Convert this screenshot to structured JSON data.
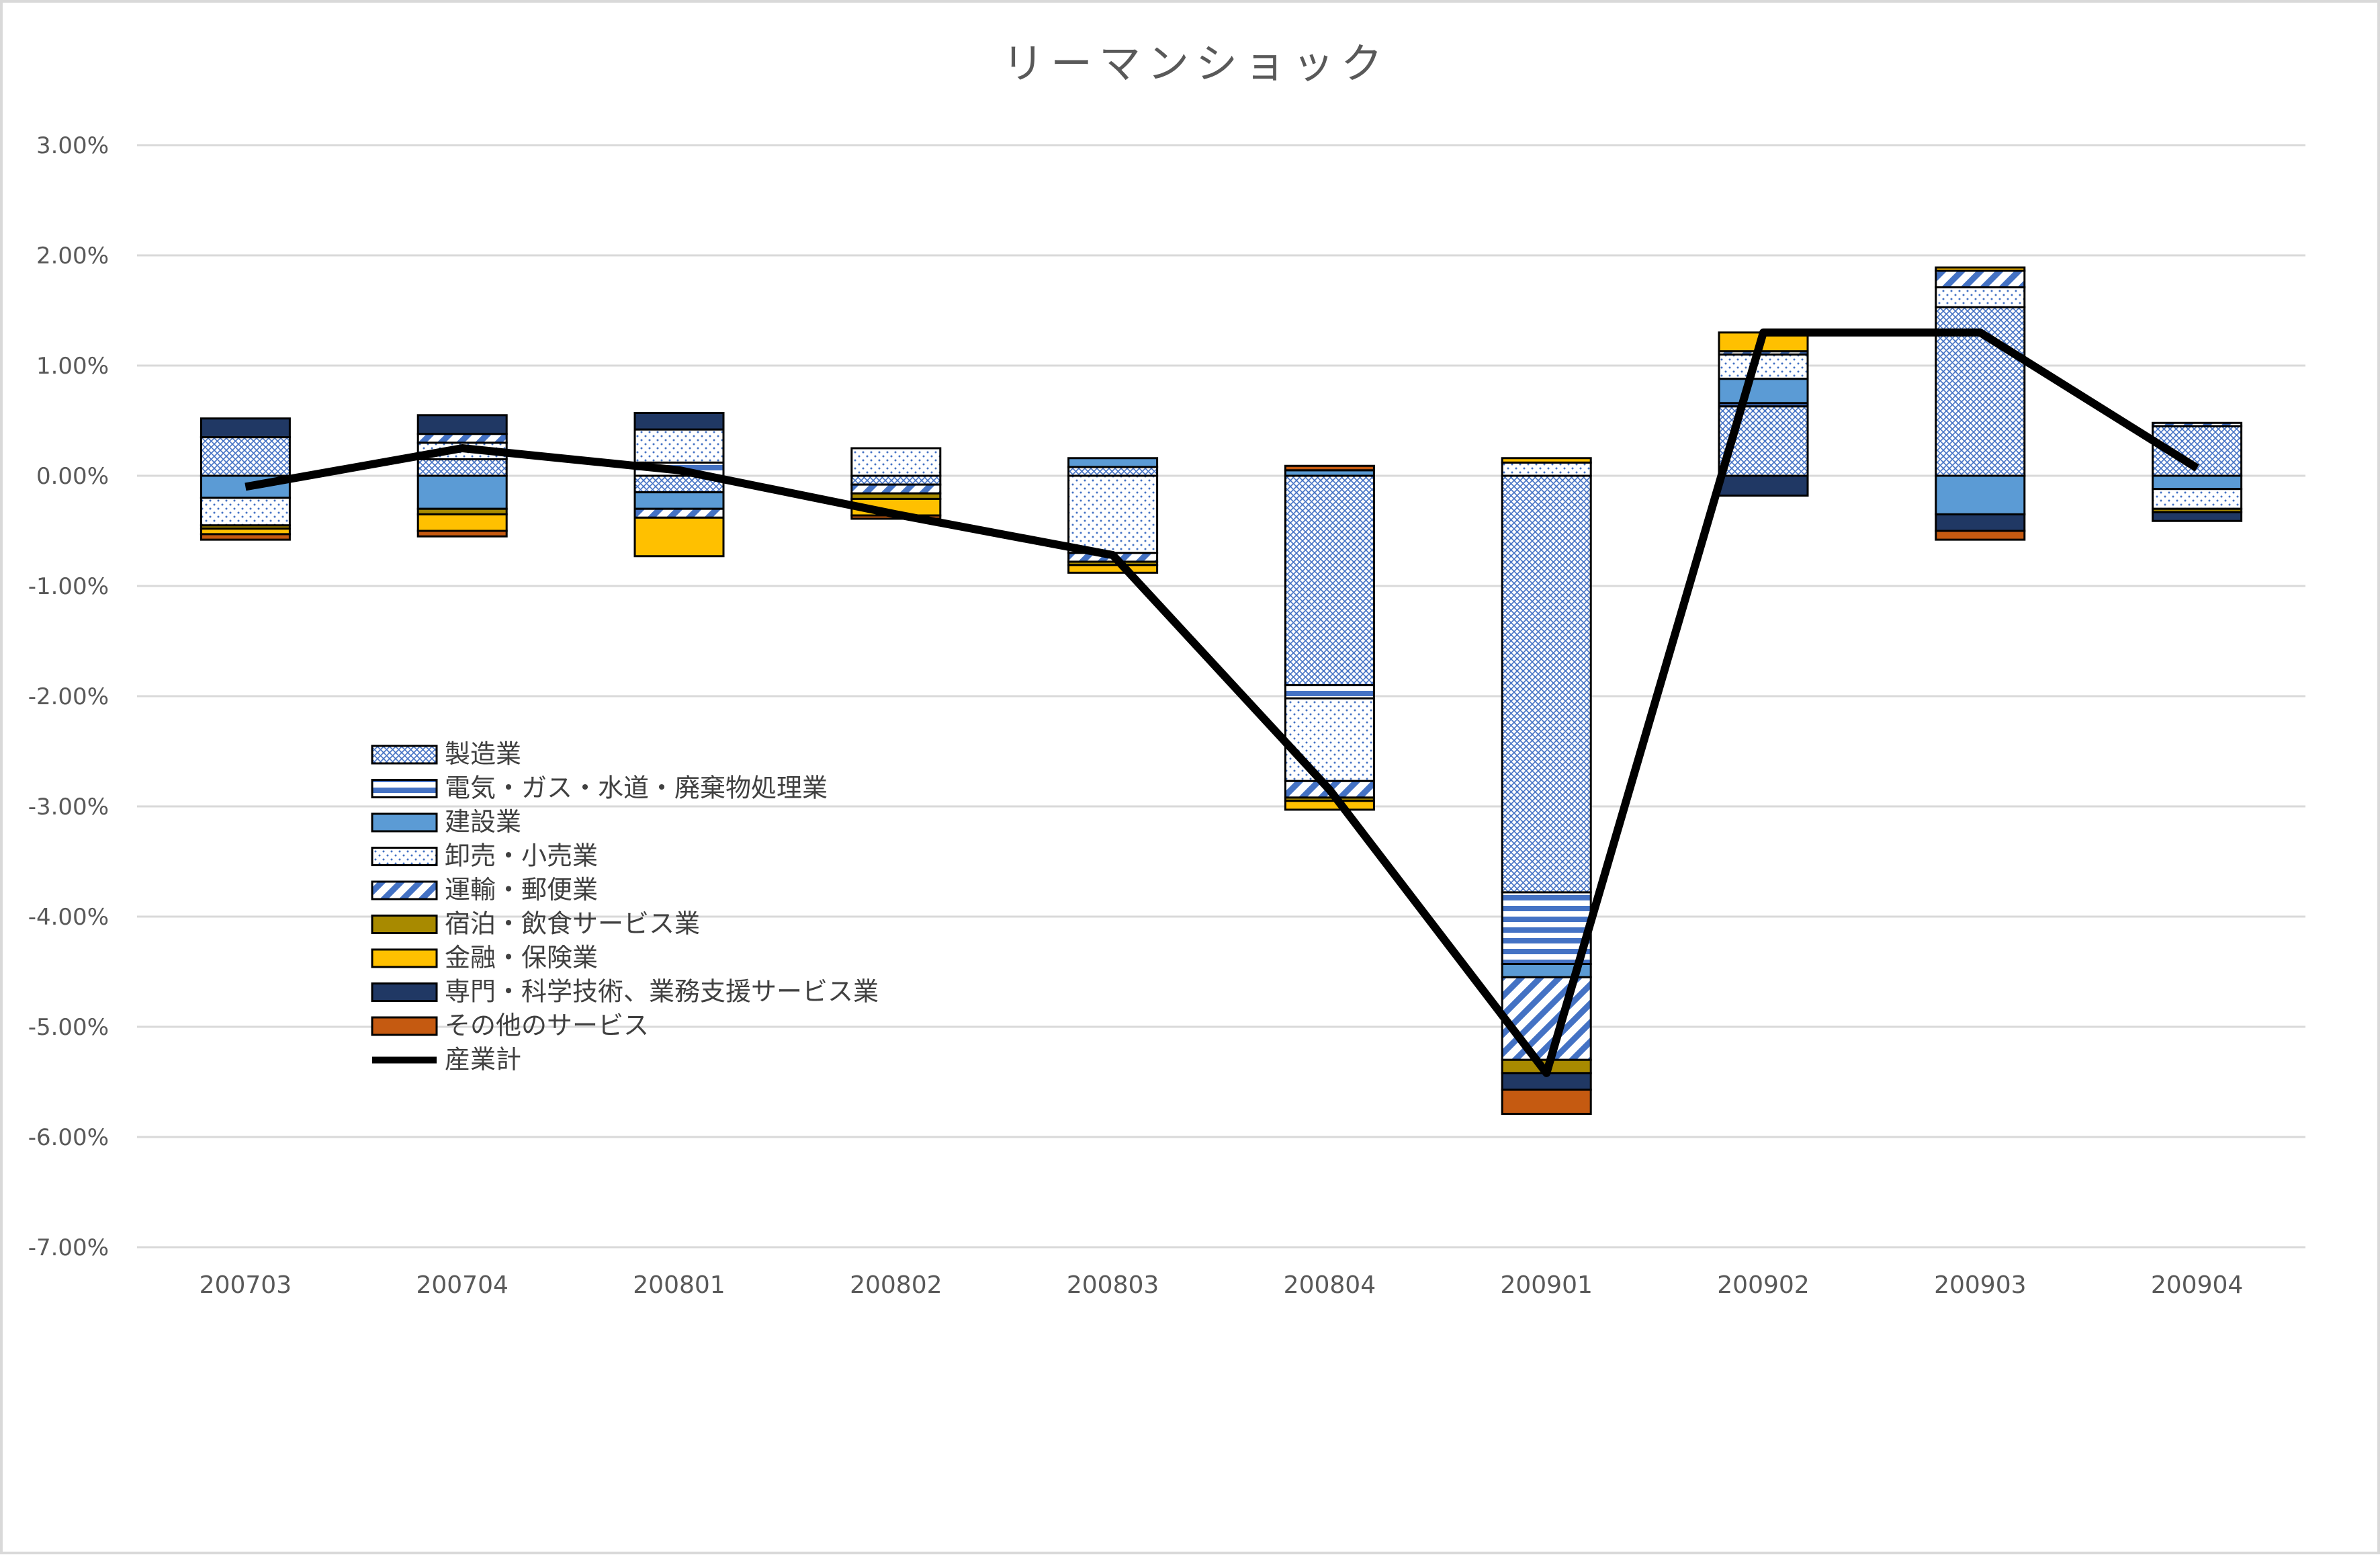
{
  "chart_data": {
    "type": "bar",
    "stacked": true,
    "title": "リーマンショック",
    "xlabel": "",
    "ylabel": "",
    "ylim": [
      -0.07,
      0.03
    ],
    "yticks": [
      {
        "value": 0.03,
        "label": "3.00%"
      },
      {
        "value": 0.02,
        "label": "2.00%"
      },
      {
        "value": 0.01,
        "label": "1.00%"
      },
      {
        "value": 0.0,
        "label": "0.00%"
      },
      {
        "value": -0.01,
        "label": "-1.00%"
      },
      {
        "value": -0.02,
        "label": "-2.00%"
      },
      {
        "value": -0.03,
        "label": "-3.00%"
      },
      {
        "value": -0.04,
        "label": "-4.00%"
      },
      {
        "value": -0.05,
        "label": "-5.00%"
      },
      {
        "value": -0.06,
        "label": "-6.00%"
      },
      {
        "value": -0.07,
        "label": "-7.00%"
      }
    ],
    "grid": true,
    "legend_position": "center-left",
    "categories": [
      "200703",
      "200704",
      "200801",
      "200802",
      "200803",
      "200804",
      "200901",
      "200902",
      "200903",
      "200904"
    ],
    "series": [
      {
        "name": "製造業",
        "pattern": "crosshatch",
        "color": "#4472c4",
        "values": [
          0.0035,
          0.0015,
          -0.0015,
          -0.0008,
          0.0008,
          -0.019,
          -0.0378,
          0.0063,
          0.0153,
          0.0045
        ]
      },
      {
        "name": "電気・ガス・水道・廃棄物処理業",
        "pattern": "hstripes",
        "color": "#4472c4",
        "values": [
          0.0,
          0.0,
          0.0012,
          0.0,
          0.0,
          -0.0012,
          -0.0065,
          0.0003,
          0.0,
          0.0
        ]
      },
      {
        "name": "建設業",
        "pattern": "solid",
        "color": "#5b9bd5",
        "values": [
          -0.002,
          -0.003,
          -0.0015,
          0.0,
          0.0008,
          0.0005,
          -0.0012,
          0.0022,
          -0.0035,
          -0.0012
        ]
      },
      {
        "name": "卸売・小売業",
        "pattern": "dots",
        "color": "#4472c4",
        "values": [
          -0.0025,
          0.0015,
          0.003,
          0.0025,
          -0.007,
          -0.0075,
          0.0012,
          0.0022,
          0.0018,
          -0.0018
        ]
      },
      {
        "name": "運輸・郵便業",
        "pattern": "diagonal",
        "color": "#4472c4",
        "values": [
          0.0,
          0.0008,
          -0.0008,
          -0.0008,
          -0.0008,
          -0.0015,
          -0.0075,
          0.0003,
          0.0015,
          0.0003
        ]
      },
      {
        "name": "宿泊・飲食サービス業",
        "pattern": "solid",
        "color": "#a88a00",
        "values": [
          -0.0003,
          -0.0005,
          0.0,
          -0.0005,
          -0.0003,
          -0.0003,
          -0.0012,
          0.0,
          0.0,
          -0.0003
        ]
      },
      {
        "name": "金融・保険業",
        "pattern": "solid",
        "color": "#ffc000",
        "values": [
          -0.0005,
          -0.0015,
          -0.0035,
          -0.0015,
          -0.0007,
          -0.0008,
          0.0004,
          0.0017,
          0.0003,
          0.0
        ]
      },
      {
        "name": "専門・科学技術、業務支援サービス業",
        "pattern": "solid",
        "color": "#203864",
        "values": [
          0.0017,
          0.0017,
          0.0015,
          0.0,
          0.0,
          0.0,
          -0.0015,
          -0.0018,
          -0.0015,
          -0.0008
        ]
      },
      {
        "name": "その他のサービス",
        "pattern": "solid",
        "color": "#c55a11",
        "values": [
          -0.0005,
          -0.0005,
          0.0,
          -0.0003,
          0.0,
          0.0004,
          -0.0022,
          0.0,
          -0.0008,
          0.0
        ]
      }
    ],
    "line_series": {
      "name": "産業計",
      "color": "#000000",
      "values": [
        -0.001,
        0.0025,
        0.0005,
        -0.0035,
        -0.0072,
        -0.0285,
        -0.0542,
        0.013,
        0.013,
        0.0007
      ]
    }
  }
}
